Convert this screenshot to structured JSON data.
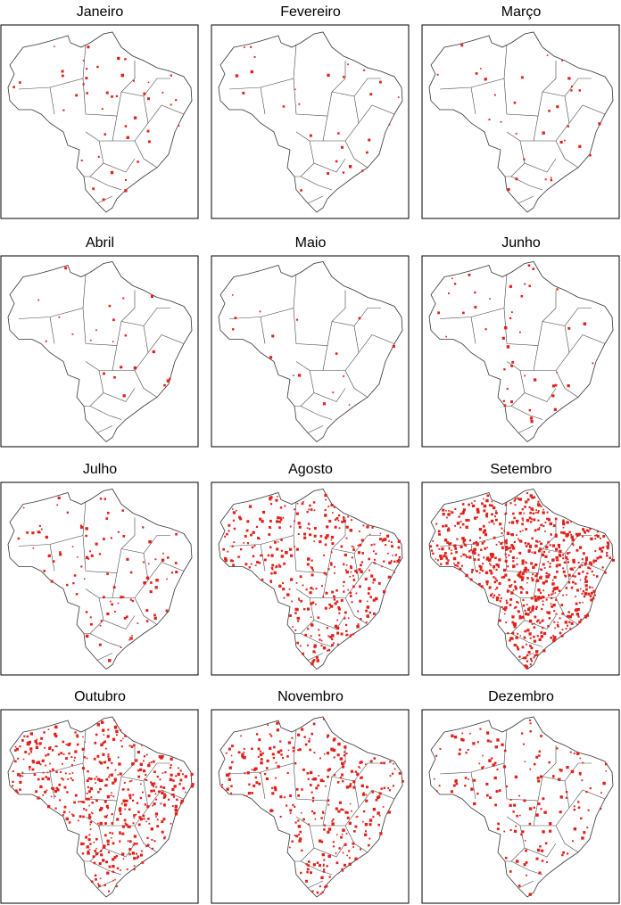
{
  "panels": [
    {
      "title": "Janeiro"
    },
    {
      "title": "Fevereiro"
    },
    {
      "title": "Março"
    },
    {
      "title": "Abril"
    },
    {
      "title": "Maio"
    },
    {
      "title": "Junho"
    },
    {
      "title": "Julho"
    },
    {
      "title": "Agosto"
    },
    {
      "title": "Setembro"
    },
    {
      "title": "Outubro"
    },
    {
      "title": "Novembro"
    },
    {
      "title": "Dezembro"
    }
  ]
}
